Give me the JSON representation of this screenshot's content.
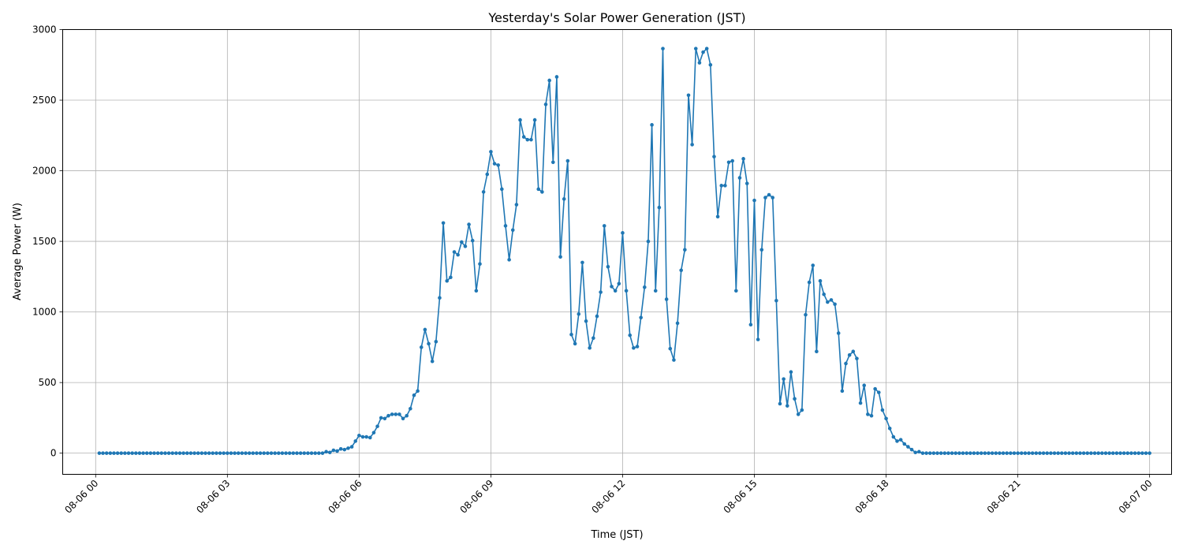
{
  "chart_data": {
    "type": "line",
    "title": "Yesterday's Solar Power Generation (JST)",
    "xlabel": "Time (JST)",
    "ylabel": "Average Power (W)",
    "xlim": [
      "08-05 23:15",
      "08-07 00:30"
    ],
    "ylim": [
      -150,
      3000
    ],
    "x_ticks": [
      "08-06 00",
      "08-06 03",
      "08-06 06",
      "08-06 09",
      "08-06 12",
      "08-06 15",
      "08-06 18",
      "08-06 21",
      "08-07 00"
    ],
    "y_ticks": [
      0,
      500,
      1000,
      1500,
      2000,
      2500,
      3000
    ],
    "grid": true,
    "line_color": "#1f77b4",
    "series": [
      {
        "x": [
          "08-06 00:05",
          "08-06 00:10",
          "08-06 00:15",
          "08-06 00:20",
          "08-06 00:25",
          "08-06 00:30",
          "08-06 00:35",
          "08-06 00:40",
          "08-06 00:45",
          "08-06 00:50",
          "08-06 00:55",
          "08-06 01:00",
          "08-06 01:05",
          "08-06 01:10",
          "08-06 01:15",
          "08-06 01:20",
          "08-06 01:25",
          "08-06 01:30",
          "08-06 01:35",
          "08-06 01:40",
          "08-06 01:45",
          "08-06 01:50",
          "08-06 01:55",
          "08-06 02:00",
          "08-06 02:05",
          "08-06 02:10",
          "08-06 02:15",
          "08-06 02:20",
          "08-06 02:25",
          "08-06 02:30",
          "08-06 02:35",
          "08-06 02:40",
          "08-06 02:45",
          "08-06 02:50",
          "08-06 02:55",
          "08-06 03:00",
          "08-06 03:05",
          "08-06 03:10",
          "08-06 03:15",
          "08-06 03:20",
          "08-06 03:25",
          "08-06 03:30",
          "08-06 03:35",
          "08-06 03:40",
          "08-06 03:45",
          "08-06 03:50",
          "08-06 03:55",
          "08-06 04:00",
          "08-06 04:05",
          "08-06 04:10",
          "08-06 04:15",
          "08-06 04:20",
          "08-06 04:25",
          "08-06 04:30",
          "08-06 04:35",
          "08-06 04:40",
          "08-06 04:45",
          "08-06 04:50",
          "08-06 04:55",
          "08-06 05:00",
          "08-06 05:05",
          "08-06 05:10",
          "08-06 05:15",
          "08-06 05:20",
          "08-06 05:25",
          "08-06 05:30",
          "08-06 05:35",
          "08-06 05:40",
          "08-06 05:45",
          "08-06 05:50",
          "08-06 05:55",
          "08-06 06:00",
          "08-06 06:05",
          "08-06 06:10",
          "08-06 06:15",
          "08-06 06:20",
          "08-06 06:25",
          "08-06 06:30",
          "08-06 06:35",
          "08-06 06:40",
          "08-06 06:45",
          "08-06 06:50",
          "08-06 06:55",
          "08-06 07:00",
          "08-06 07:05",
          "08-06 07:10",
          "08-06 07:15",
          "08-06 07:20",
          "08-06 07:25",
          "08-06 07:30",
          "08-06 07:35",
          "08-06 07:40",
          "08-06 07:45",
          "08-06 07:50",
          "08-06 07:55",
          "08-06 08:00",
          "08-06 08:05",
          "08-06 08:10",
          "08-06 08:15",
          "08-06 08:20",
          "08-06 08:25",
          "08-06 08:30",
          "08-06 08:35",
          "08-06 08:40",
          "08-06 08:45",
          "08-06 08:50",
          "08-06 08:55",
          "08-06 09:00",
          "08-06 09:05",
          "08-06 09:10",
          "08-06 09:15",
          "08-06 09:20",
          "08-06 09:25",
          "08-06 09:30",
          "08-06 09:35",
          "08-06 09:40",
          "08-06 09:45",
          "08-06 09:50",
          "08-06 09:55",
          "08-06 10:00",
          "08-06 10:05",
          "08-06 10:10",
          "08-06 10:15",
          "08-06 10:20",
          "08-06 10:25",
          "08-06 10:30",
          "08-06 10:35",
          "08-06 10:40",
          "08-06 10:45",
          "08-06 10:50",
          "08-06 10:55",
          "08-06 11:00",
          "08-06 11:05",
          "08-06 11:10",
          "08-06 11:15",
          "08-06 11:20",
          "08-06 11:25",
          "08-06 11:30",
          "08-06 11:35",
          "08-06 11:40",
          "08-06 11:45",
          "08-06 11:50",
          "08-06 11:55",
          "08-06 12:00",
          "08-06 12:05",
          "08-06 12:10",
          "08-06 12:15",
          "08-06 12:20",
          "08-06 12:25",
          "08-06 12:30",
          "08-06 12:35",
          "08-06 12:40",
          "08-06 12:45",
          "08-06 12:50",
          "08-06 12:55",
          "08-06 13:00",
          "08-06 13:05",
          "08-06 13:10",
          "08-06 13:15",
          "08-06 13:20",
          "08-06 13:25",
          "08-06 13:30",
          "08-06 13:35",
          "08-06 13:40",
          "08-06 13:45",
          "08-06 13:50",
          "08-06 13:55",
          "08-06 14:00",
          "08-06 14:05",
          "08-06 14:10",
          "08-06 14:15",
          "08-06 14:20",
          "08-06 14:25",
          "08-06 14:30",
          "08-06 14:35",
          "08-06 14:40",
          "08-06 14:45",
          "08-06 14:50",
          "08-06 14:55",
          "08-06 15:00",
          "08-06 15:05",
          "08-06 15:10",
          "08-06 15:15",
          "08-06 15:20",
          "08-06 15:25",
          "08-06 15:30",
          "08-06 15:35",
          "08-06 15:40",
          "08-06 15:45",
          "08-06 15:50",
          "08-06 15:55",
          "08-06 16:00",
          "08-06 16:05",
          "08-06 16:10",
          "08-06 16:15",
          "08-06 16:20",
          "08-06 16:25",
          "08-06 16:30",
          "08-06 16:35",
          "08-06 16:40",
          "08-06 16:45",
          "08-06 16:50",
          "08-06 16:55",
          "08-06 17:00",
          "08-06 17:05",
          "08-06 17:10",
          "08-06 17:15",
          "08-06 17:20",
          "08-06 17:25",
          "08-06 17:30",
          "08-06 17:35",
          "08-06 17:40",
          "08-06 17:45",
          "08-06 17:50",
          "08-06 17:55",
          "08-06 18:00",
          "08-06 18:05",
          "08-06 18:10",
          "08-06 18:15",
          "08-06 18:20",
          "08-06 18:25",
          "08-06 18:30",
          "08-06 18:35",
          "08-06 18:40",
          "08-06 18:45",
          "08-06 18:50",
          "08-06 18:55",
          "08-06 19:00",
          "08-06 19:05",
          "08-06 19:10",
          "08-06 19:15",
          "08-06 19:20",
          "08-06 19:25",
          "08-06 19:30",
          "08-06 19:35",
          "08-06 19:40",
          "08-06 19:45",
          "08-06 19:50",
          "08-06 19:55",
          "08-06 20:00",
          "08-06 20:05",
          "08-06 20:10",
          "08-06 20:15",
          "08-06 20:20",
          "08-06 20:25",
          "08-06 20:30",
          "08-06 20:35",
          "08-06 20:40",
          "08-06 20:45",
          "08-06 20:50",
          "08-06 20:55",
          "08-06 21:00",
          "08-06 21:05",
          "08-06 21:10",
          "08-06 21:15",
          "08-06 21:20",
          "08-06 21:25",
          "08-06 21:30",
          "08-06 21:35",
          "08-06 21:40",
          "08-06 21:45",
          "08-06 21:50",
          "08-06 21:55",
          "08-06 22:00",
          "08-06 22:05",
          "08-06 22:10",
          "08-06 22:15",
          "08-06 22:20",
          "08-06 22:25",
          "08-06 22:30",
          "08-06 22:35",
          "08-06 22:40",
          "08-06 22:45",
          "08-06 22:50",
          "08-06 22:55",
          "08-06 23:00",
          "08-06 23:05",
          "08-06 23:10",
          "08-06 23:15",
          "08-06 23:20",
          "08-06 23:25",
          "08-06 23:30",
          "08-06 23:35",
          "08-06 23:40",
          "08-06 23:45",
          "08-06 23:50",
          "08-06 23:55",
          "08-07 00:00"
        ],
        "y": [
          0,
          0,
          0,
          0,
          0,
          0,
          0,
          0,
          0,
          0,
          0,
          0,
          0,
          0,
          0,
          0,
          0,
          0,
          0,
          0,
          0,
          0,
          0,
          0,
          0,
          0,
          0,
          0,
          0,
          0,
          0,
          0,
          0,
          0,
          0,
          0,
          0,
          0,
          0,
          0,
          0,
          0,
          0,
          0,
          0,
          0,
          0,
          0,
          0,
          0,
          0,
          0,
          0,
          0,
          0,
          0,
          0,
          0,
          0,
          0,
          0,
          0,
          10,
          5,
          20,
          15,
          30,
          25,
          35,
          45,
          85,
          125,
          115,
          115,
          110,
          145,
          190,
          250,
          245,
          265,
          275,
          275,
          275,
          245,
          265,
          315,
          410,
          440,
          750,
          875,
          775,
          650,
          790,
          1100,
          1630,
          1220,
          1245,
          1425,
          1405,
          1495,
          1465,
          1620,
          1505,
          1150,
          1340,
          1850,
          1975,
          2135,
          2050,
          2040,
          1870,
          1610,
          1370,
          1580,
          1760,
          2360,
          2240,
          2220,
          2220,
          2360,
          1870,
          1850,
          2470,
          2640,
          2060,
          2665,
          1390,
          1800,
          2070,
          840,
          775,
          985,
          1350,
          935,
          745,
          815,
          970,
          1140,
          1610,
          1320,
          1180,
          1150,
          1200,
          1560,
          1150,
          835,
          745,
          755,
          960,
          1175,
          1500,
          2325,
          1150,
          1740,
          2865,
          1090,
          740,
          660,
          920,
          1295,
          1440,
          2535,
          2185,
          2865,
          2765,
          2840,
          2865,
          2750,
          2100,
          1675,
          1895,
          1895,
          2060,
          2070,
          1150,
          1950,
          2085,
          1910,
          910,
          1790,
          805,
          1440,
          1810,
          1830,
          1810,
          1080,
          350,
          525,
          335,
          575,
          385,
          275,
          305,
          980,
          1210,
          1330,
          720,
          1220,
          1125,
          1070,
          1085,
          1055,
          850,
          440,
          635,
          695,
          720,
          670,
          355,
          480,
          275,
          265,
          455,
          430,
          305,
          245,
          175,
          115,
          85,
          95,
          65,
          45,
          25,
          5,
          10,
          0,
          0,
          0,
          0,
          0,
          0,
          0,
          0,
          0,
          0,
          0,
          0,
          0,
          0,
          0,
          0,
          0,
          0,
          0,
          0,
          0,
          0,
          0,
          0,
          0,
          0,
          0,
          0,
          0,
          0,
          0,
          0,
          0,
          0,
          0,
          0,
          0,
          0,
          0,
          0,
          0,
          0,
          0,
          0,
          0,
          0,
          0,
          0,
          0,
          0,
          0,
          0,
          0,
          0,
          0,
          0,
          0,
          0,
          0,
          0,
          0,
          0,
          0
        ]
      }
    ]
  }
}
